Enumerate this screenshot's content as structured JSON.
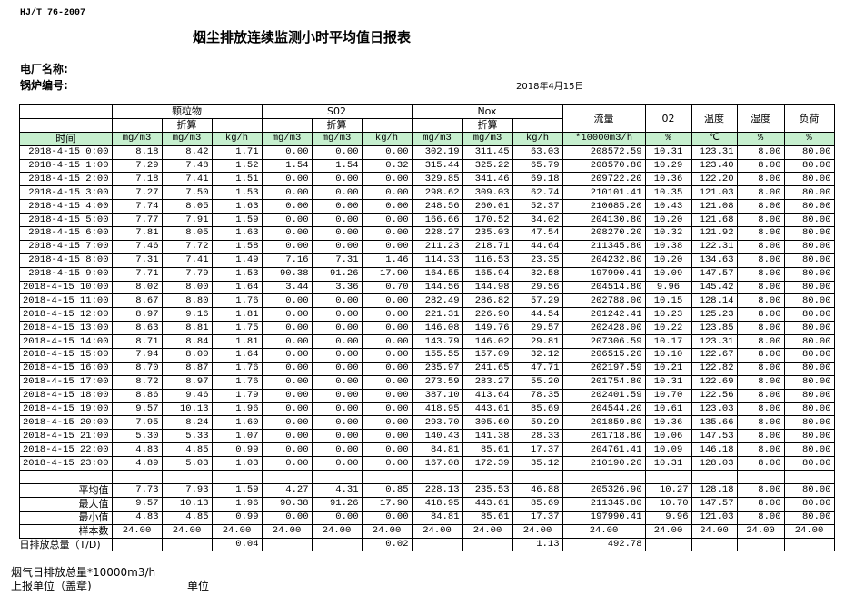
{
  "header": {
    "standard": "HJ/T  76-2007",
    "title": "烟尘排放连续监测小时平均值日报表",
    "plant_label": "电厂名称:",
    "boiler_label": "锅炉编号:",
    "date": "2018年4月15日"
  },
  "table": {
    "groups": [
      "颗粒物",
      "S02",
      "Nox"
    ],
    "converted_label": "折算",
    "single_columns": [
      "流量",
      "02",
      "温度",
      "湿度",
      "负荷"
    ],
    "time_label": "时间",
    "units": [
      "mg/m3",
      "mg/m3",
      "kg/h",
      "mg/m3",
      "mg/m3",
      "kg/h",
      "mg/m3",
      "mg/m3",
      "kg/h",
      "*10000m3/h",
      "%",
      "℃",
      "%",
      "%"
    ],
    "rows": [
      [
        "2018-4-15 0:00",
        "8.18",
        "8.42",
        "1.71",
        "0.00",
        "0.00",
        "0.00",
        "302.19",
        "311.45",
        "63.03",
        "208572.59",
        "10.31",
        "123.31",
        "8.00",
        "80.00"
      ],
      [
        "2018-4-15 1:00",
        "7.29",
        "7.48",
        "1.52",
        "1.54",
        "1.54",
        "0.32",
        "315.44",
        "325.22",
        "65.79",
        "208570.80",
        "10.29",
        "123.40",
        "8.00",
        "80.00"
      ],
      [
        "2018-4-15 2:00",
        "7.18",
        "7.41",
        "1.51",
        "0.00",
        "0.00",
        "0.00",
        "329.85",
        "341.46",
        "69.18",
        "209722.20",
        "10.36",
        "122.20",
        "8.00",
        "80.00"
      ],
      [
        "2018-4-15 3:00",
        "7.27",
        "7.50",
        "1.53",
        "0.00",
        "0.00",
        "0.00",
        "298.62",
        "309.03",
        "62.74",
        "210101.41",
        "10.35",
        "121.03",
        "8.00",
        "80.00"
      ],
      [
        "2018-4-15 4:00",
        "7.74",
        "8.05",
        "1.63",
        "0.00",
        "0.00",
        "0.00",
        "248.56",
        "260.01",
        "52.37",
        "210685.20",
        "10.43",
        "121.08",
        "8.00",
        "80.00"
      ],
      [
        "2018-4-15 5:00",
        "7.77",
        "7.91",
        "1.59",
        "0.00",
        "0.00",
        "0.00",
        "166.66",
        "170.52",
        "34.02",
        "204130.80",
        "10.20",
        "121.68",
        "8.00",
        "80.00"
      ],
      [
        "2018-4-15 6:00",
        "7.81",
        "8.05",
        "1.63",
        "0.00",
        "0.00",
        "0.00",
        "228.27",
        "235.03",
        "47.54",
        "208270.20",
        "10.32",
        "121.92",
        "8.00",
        "80.00"
      ],
      [
        "2018-4-15 7:00",
        "7.46",
        "7.72",
        "1.58",
        "0.00",
        "0.00",
        "0.00",
        "211.23",
        "218.71",
        "44.64",
        "211345.80",
        "10.38",
        "122.31",
        "8.00",
        "80.00"
      ],
      [
        "2018-4-15 8:00",
        "7.31",
        "7.41",
        "1.49",
        "7.16",
        "7.31",
        "1.46",
        "114.33",
        "116.53",
        "23.35",
        "204232.80",
        "10.20",
        "134.63",
        "8.00",
        "80.00"
      ],
      [
        "2018-4-15 9:00",
        "7.71",
        "7.79",
        "1.53",
        "90.38",
        "91.26",
        "17.90",
        "164.55",
        "165.94",
        "32.58",
        "197990.41",
        "10.09",
        "147.57",
        "8.00",
        "80.00"
      ],
      [
        "2018-4-15 10:00",
        "8.02",
        "8.00",
        "1.64",
        "3.44",
        "3.36",
        "0.70",
        "144.56",
        "144.98",
        "29.56",
        "204514.80",
        "9.96",
        "145.42",
        "8.00",
        "80.00"
      ],
      [
        "2018-4-15 11:00",
        "8.67",
        "8.80",
        "1.76",
        "0.00",
        "0.00",
        "0.00",
        "282.49",
        "286.82",
        "57.29",
        "202788.00",
        "10.15",
        "128.14",
        "8.00",
        "80.00"
      ],
      [
        "2018-4-15 12:00",
        "8.97",
        "9.16",
        "1.81",
        "0.00",
        "0.00",
        "0.00",
        "221.31",
        "226.90",
        "44.54",
        "201242.41",
        "10.23",
        "125.23",
        "8.00",
        "80.00"
      ],
      [
        "2018-4-15 13:00",
        "8.63",
        "8.81",
        "1.75",
        "0.00",
        "0.00",
        "0.00",
        "146.08",
        "149.76",
        "29.57",
        "202428.00",
        "10.22",
        "123.85",
        "8.00",
        "80.00"
      ],
      [
        "2018-4-15 14:00",
        "8.71",
        "8.84",
        "1.81",
        "0.00",
        "0.00",
        "0.00",
        "143.79",
        "146.02",
        "29.81",
        "207306.59",
        "10.17",
        "123.31",
        "8.00",
        "80.00"
      ],
      [
        "2018-4-15 15:00",
        "7.94",
        "8.00",
        "1.64",
        "0.00",
        "0.00",
        "0.00",
        "155.55",
        "157.09",
        "32.12",
        "206515.20",
        "10.10",
        "122.67",
        "8.00",
        "80.00"
      ],
      [
        "2018-4-15 16:00",
        "8.70",
        "8.87",
        "1.76",
        "0.00",
        "0.00",
        "0.00",
        "235.97",
        "241.65",
        "47.71",
        "202197.59",
        "10.21",
        "122.82",
        "8.00",
        "80.00"
      ],
      [
        "2018-4-15 17:00",
        "8.72",
        "8.97",
        "1.76",
        "0.00",
        "0.00",
        "0.00",
        "273.59",
        "283.27",
        "55.20",
        "201754.80",
        "10.31",
        "122.69",
        "8.00",
        "80.00"
      ],
      [
        "2018-4-15 18:00",
        "8.86",
        "9.46",
        "1.79",
        "0.00",
        "0.00",
        "0.00",
        "387.10",
        "413.64",
        "78.35",
        "202401.59",
        "10.70",
        "122.56",
        "8.00",
        "80.00"
      ],
      [
        "2018-4-15 19:00",
        "9.57",
        "10.13",
        "1.96",
        "0.00",
        "0.00",
        "0.00",
        "418.95",
        "443.61",
        "85.69",
        "204544.20",
        "10.61",
        "123.03",
        "8.00",
        "80.00"
      ],
      [
        "2018-4-15 20:00",
        "7.95",
        "8.24",
        "1.60",
        "0.00",
        "0.00",
        "0.00",
        "293.70",
        "305.60",
        "59.29",
        "201859.80",
        "10.36",
        "135.66",
        "8.00",
        "80.00"
      ],
      [
        "2018-4-15 21:00",
        "5.30",
        "5.33",
        "1.07",
        "0.00",
        "0.00",
        "0.00",
        "140.43",
        "141.38",
        "28.33",
        "201718.80",
        "10.06",
        "147.53",
        "8.00",
        "80.00"
      ],
      [
        "2018-4-15 22:00",
        "4.83",
        "4.85",
        "0.99",
        "0.00",
        "0.00",
        "0.00",
        "84.81",
        "85.61",
        "17.37",
        "204761.41",
        "10.09",
        "146.18",
        "8.00",
        "80.00"
      ],
      [
        "2018-4-15 23:00",
        "4.89",
        "5.03",
        "1.03",
        "0.00",
        "0.00",
        "0.00",
        "167.08",
        "172.39",
        "35.12",
        "210190.20",
        "10.31",
        "128.03",
        "8.00",
        "80.00"
      ]
    ],
    "summary": [
      [
        "平均值",
        "7.73",
        "7.93",
        "1.59",
        "4.27",
        "4.31",
        "0.85",
        "228.13",
        "235.53",
        "46.88",
        "205326.90",
        "10.27",
        "128.18",
        "8.00",
        "80.00"
      ],
      [
        "最大值",
        "9.57",
        "10.13",
        "1.96",
        "90.38",
        "91.26",
        "17.90",
        "418.95",
        "443.61",
        "85.69",
        "211345.80",
        "10.70",
        "147.57",
        "8.00",
        "80.00"
      ],
      [
        "最小值",
        "4.83",
        "4.85",
        "0.99",
        "0.00",
        "0.00",
        "0.00",
        "84.81",
        "85.61",
        "17.37",
        "197990.41",
        "9.96",
        "121.03",
        "8.00",
        "80.00"
      ],
      [
        "样本数",
        "24.00",
        "24.00",
        "24.00",
        "24.00",
        "24.00",
        "24.00",
        "24.00",
        "24.00",
        "24.00",
        "24.00",
        "24.00",
        "24.00",
        "24.00",
        "24.00"
      ]
    ],
    "total": [
      "日排放总量（T/D)",
      "",
      "",
      "0.04",
      "",
      "",
      "0.02",
      "",
      "",
      "1.13",
      "492.78",
      "",
      "",
      "",
      ""
    ]
  },
  "footer": {
    "flue_gas_total": "烟气日排放总量*10000m3/h",
    "reporting_unit": "上报单位（盖章)",
    "unit": "单位"
  },
  "colors": {
    "units_row_bg": "#c6efce"
  }
}
